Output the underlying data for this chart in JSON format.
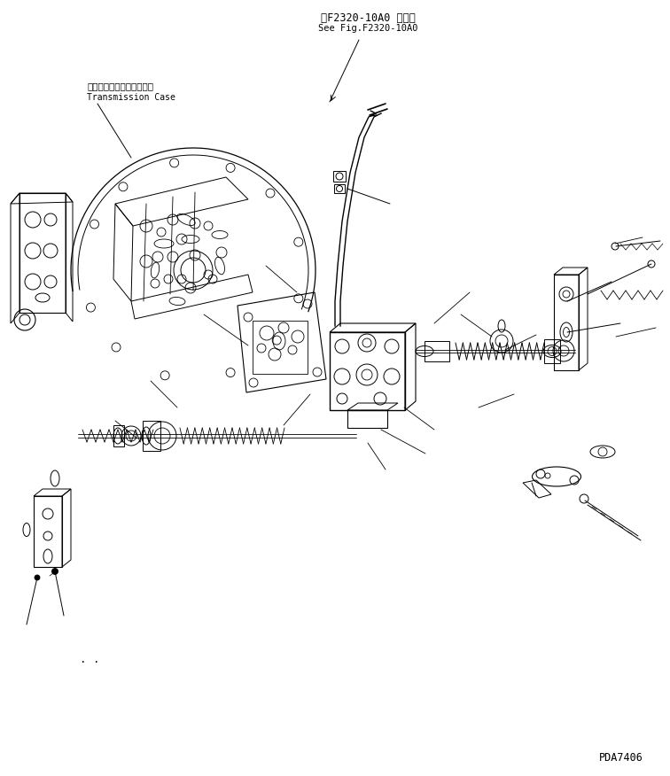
{
  "title_jp": "第F2320-10A0 図参照",
  "title_en": "See Fig.F2320-10A0",
  "label_jp": "トランスミッションケース",
  "label_en": "Transmission Case",
  "part_number": "PDA7406",
  "bg_color": "#ffffff",
  "line_color": "#000000",
  "fig_width": 7.56,
  "fig_height": 8.76,
  "dpi": 100
}
